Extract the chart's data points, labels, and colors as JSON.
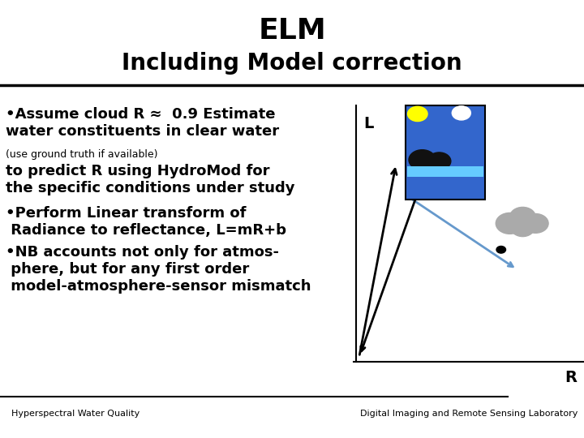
{
  "title_line1": "ELM",
  "title_line2": "Including Model correction",
  "background_color": "#ffffff",
  "title_color": "#000000",
  "text_color": "#000000",
  "footer_left": "Hyperspectral Water Quality",
  "footer_right": "Digital Imaging and Remote Sensing Laboratory",
  "separator_color": "#000000"
}
